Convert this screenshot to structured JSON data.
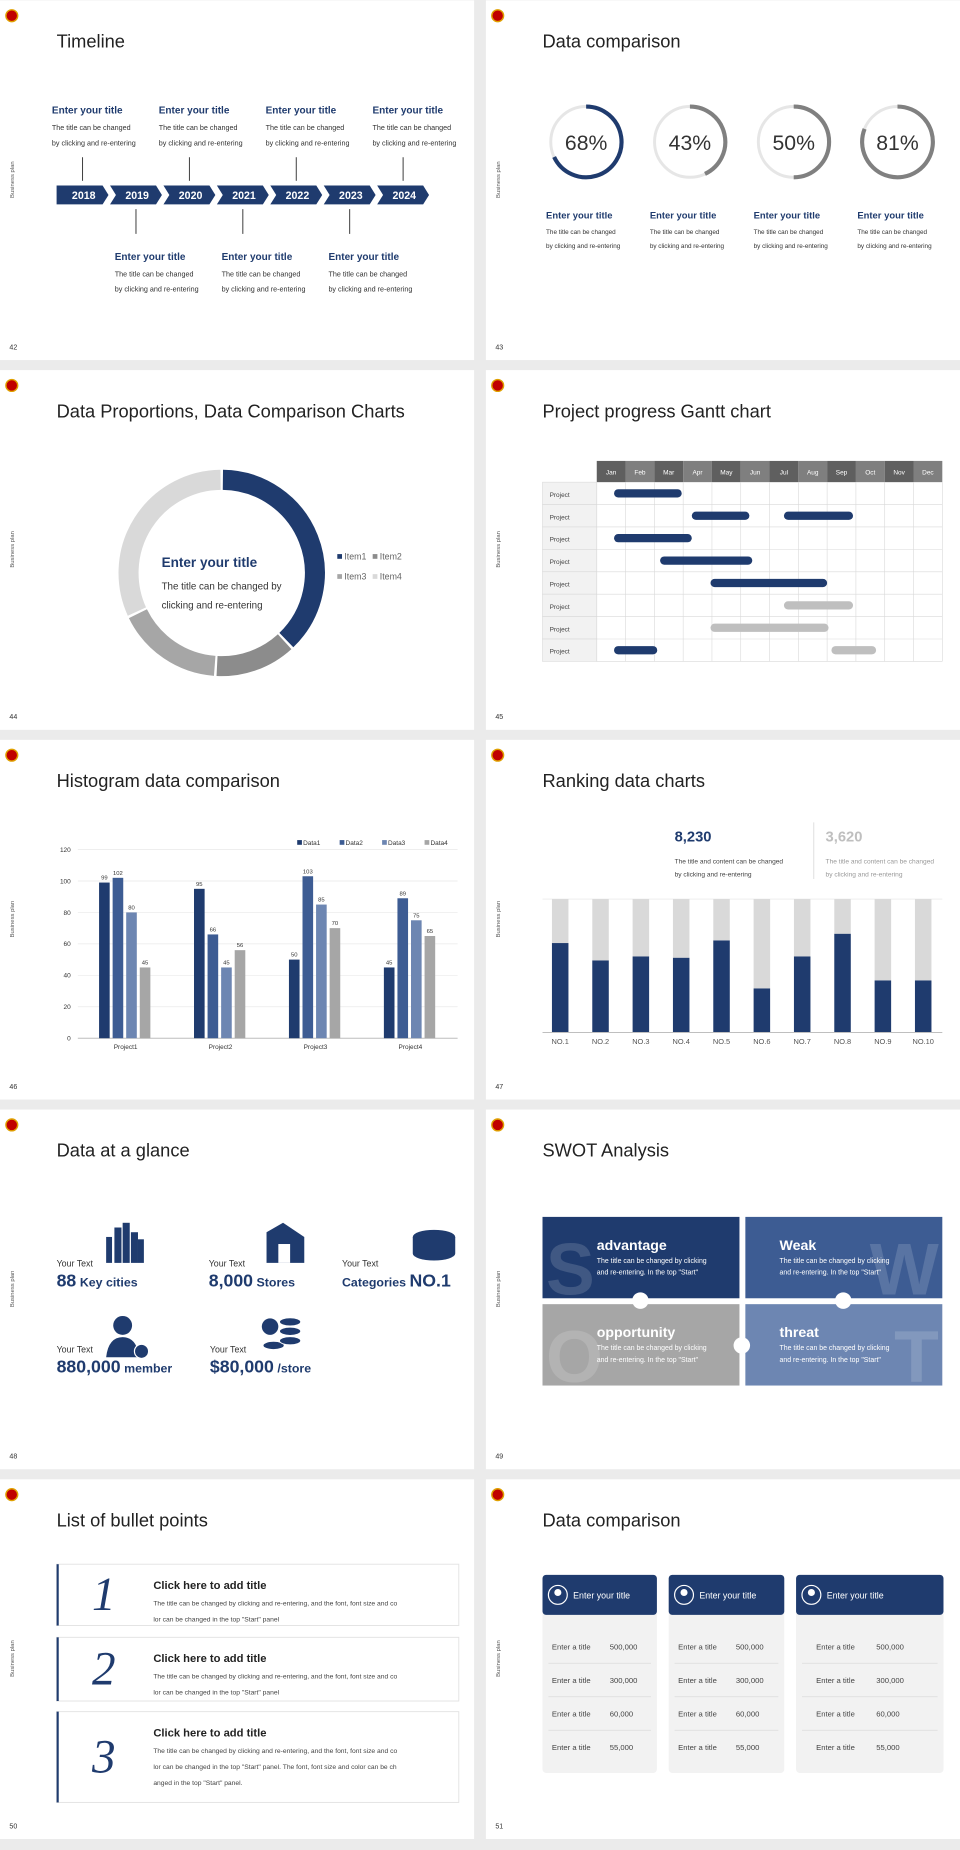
{
  "slides": [
    {
      "page": "42",
      "side": "Business plan",
      "title": "Timeline",
      "years": [
        "2018",
        "2019",
        "2020",
        "2021",
        "2022",
        "2023",
        "2024"
      ],
      "top": [
        {
          "title": "Enter your title",
          "lines": [
            "The title can be changed",
            "by clicking and re-entering"
          ]
        },
        {
          "title": "Enter your title",
          "lines": [
            "The title can be changed",
            "by clicking and re-entering"
          ]
        },
        {
          "title": "Enter your title",
          "lines": [
            "The title can be changed",
            "by clicking and re-entering"
          ]
        },
        {
          "title": "Enter your title",
          "lines": [
            "The title can be changed",
            "by clicking and re-entering"
          ]
        }
      ],
      "bottom": [
        {
          "title": "Enter your title",
          "lines": [
            "The title can be changed",
            "by clicking and re-entering"
          ]
        },
        {
          "title": "Enter your title",
          "lines": [
            "The title can be changed",
            "by clicking and re-entering"
          ]
        },
        {
          "title": "Enter your title",
          "lines": [
            "The title can be changed",
            "by clicking and re-entering"
          ]
        }
      ]
    },
    {
      "page": "43",
      "side": "Business plan",
      "title": "Data comparison",
      "chart_data": {
        "type": "ring",
        "values": [
          68,
          43,
          50,
          81
        ],
        "value_labels": [
          "68%",
          "43%",
          "50%",
          "81%"
        ],
        "colors": [
          "#1f3b6e",
          "#808080",
          "#808080",
          "#808080"
        ],
        "ylim": [
          0,
          100
        ]
      },
      "captions": [
        {
          "title": "Enter your title",
          "lines": [
            "The title can be changed",
            "by clicking and re-entering"
          ]
        },
        {
          "title": "Enter your title",
          "lines": [
            "The title can be changed",
            "by clicking and re-entering"
          ]
        },
        {
          "title": "Enter your title",
          "lines": [
            "The title can be changed",
            "by clicking and re-entering"
          ]
        },
        {
          "title": "Enter your title",
          "lines": [
            "The title can be changed",
            "by clicking and re-entering"
          ]
        }
      ]
    },
    {
      "page": "44",
      "side": "Business plan",
      "title": "Data Proportions, Data Comparison Charts",
      "chart_data": {
        "type": "donut",
        "categories": [
          "Item1",
          "Item2",
          "Item3",
          "Item4"
        ],
        "values": [
          38,
          13,
          17,
          32
        ],
        "colors": [
          "#1f3b6e",
          "#8c8c8c",
          "#a6a6a6",
          "#d9d9d9"
        ]
      },
      "center": {
        "title": "Enter your title",
        "lines": [
          "The title can be changed by",
          "clicking and re-entering"
        ]
      }
    },
    {
      "page": "45",
      "side": "Business plan",
      "title": "Project progress Gantt chart",
      "chart_data": {
        "type": "gantt",
        "categories": [
          "Jan",
          "Feb",
          "Mar",
          "Apr",
          "May",
          "Jun",
          "Jul",
          "Aug",
          "Sep",
          "Oct",
          "Nov",
          "Dec"
        ],
        "xlim": [
          0,
          12
        ],
        "rows": [
          {
            "label": "Project",
            "bars": [
              {
                "start": 0.6,
                "end": 2.95,
                "color": "#1f3b6e"
              }
            ]
          },
          {
            "label": "Project",
            "bars": [
              {
                "start": 3.3,
                "end": 5.3,
                "color": "#1f3b6e"
              },
              {
                "start": 6.5,
                "end": 8.9,
                "color": "#1f3b6e"
              }
            ]
          },
          {
            "label": "Project",
            "bars": [
              {
                "start": 0.6,
                "end": 3.3,
                "color": "#1f3b6e"
              }
            ]
          },
          {
            "label": "Project",
            "bars": [
              {
                "start": 2.2,
                "end": 5.4,
                "color": "#1f3b6e"
              }
            ]
          },
          {
            "label": "Project",
            "bars": [
              {
                "start": 3.95,
                "end": 8.0,
                "color": "#1f3b6e"
              }
            ]
          },
          {
            "label": "Project",
            "bars": [
              {
                "start": 6.5,
                "end": 8.9,
                "color": "#bfbfbf"
              }
            ]
          },
          {
            "label": "Project",
            "bars": [
              {
                "start": 3.95,
                "end": 8.05,
                "color": "#bfbfbf"
              }
            ]
          },
          {
            "label": "Project",
            "bars": [
              {
                "start": 0.6,
                "end": 2.1,
                "color": "#1f3b6e"
              },
              {
                "start": 8.15,
                "end": 9.7,
                "color": "#bfbfbf"
              }
            ]
          }
        ]
      }
    },
    {
      "page": "46",
      "side": "Business plan",
      "title": "Histogram data comparison",
      "chart_data": {
        "type": "bar",
        "categories": [
          "Project1",
          "Project2",
          "Project3",
          "Project4"
        ],
        "series": [
          {
            "name": "Data1",
            "color": "#1f3b6e",
            "values": [
              99,
              95,
              50,
              45
            ]
          },
          {
            "name": "Data2",
            "color": "#3d5c93",
            "values": [
              102,
              66,
              103,
              89
            ]
          },
          {
            "name": "Data3",
            "color": "#6d86b2",
            "values": [
              80,
              45,
              85,
              75
            ]
          },
          {
            "name": "Data4",
            "color": "#a6a6a6",
            "values": [
              45,
              56,
              70,
              65
            ]
          }
        ],
        "ylim": [
          0,
          120
        ],
        "yticks": [
          0,
          20,
          40,
          60,
          80,
          100,
          120
        ],
        "grid": true
      }
    },
    {
      "page": "47",
      "side": "Business plan",
      "title": "Ranking data charts",
      "stats": [
        {
          "value": "8,230",
          "lines": [
            "The title and content can be changed",
            "by clicking and re-entering"
          ]
        },
        {
          "value": "3,620",
          "lines": [
            "The title and content can be changed",
            "by clicking and re-entering"
          ]
        }
      ],
      "chart_data": {
        "type": "stacked_bar",
        "categories": [
          "NO.1",
          "NO.2",
          "NO.3",
          "NO.4",
          "NO.5",
          "NO.6",
          "NO.7",
          "NO.8",
          "NO.9",
          "NO.10"
        ],
        "series": [
          {
            "color": "#1f3b6e",
            "values": [
              67,
              54,
              57,
              56,
              69,
              33,
              57,
              74,
              39,
              39
            ]
          },
          {
            "color": "#d9d9d9",
            "values": [
              33,
              46,
              43,
              44,
              31,
              67,
              43,
              26,
              61,
              61
            ]
          }
        ],
        "ylim": [
          0,
          100
        ]
      }
    },
    {
      "page": "48",
      "side": "Business plan",
      "title": "Data at a glance",
      "items": [
        {
          "label": "Your Text",
          "parts": [
            {
              "text": "88",
              "size": "large"
            },
            {
              "text": "Key cities",
              "size": "small"
            }
          ]
        },
        {
          "label": "Your Text",
          "parts": [
            {
              "text": "8,000",
              "size": "large"
            },
            {
              "text": "Stores",
              "size": "small"
            }
          ]
        },
        {
          "label": "Your Text",
          "parts": [
            {
              "text": "Categories",
              "size": "small"
            },
            {
              "text": "NO.1",
              "size": "large"
            }
          ]
        },
        {
          "label": "Your Text",
          "parts": [
            {
              "text": "880,000",
              "size": "large"
            },
            {
              "text": "member",
              "size": "small"
            }
          ]
        },
        {
          "label": "Your Text",
          "parts": [
            {
              "text": "$80,000",
              "size": "large"
            },
            {
              "text": "/store",
              "size": "small"
            }
          ]
        }
      ]
    },
    {
      "page": "49",
      "side": "Business plan",
      "title": "SWOT Analysis",
      "quadrants": [
        {
          "letter": "S",
          "title": "advantage",
          "color": "#1f3b6e",
          "lines": [
            "The title can be changed by clicking",
            "and re-entering. In the top \"Start\""
          ]
        },
        {
          "letter": "W",
          "title": "Weak",
          "color": "#3d5c93",
          "lines": [
            "The title can be changed by clicking",
            "and re-entering. In the top \"Start\""
          ]
        },
        {
          "letter": "O",
          "title": "opportunity",
          "color": "#a6a6a6",
          "lines": [
            "The title can be changed by clicking",
            "and re-entering. In the top \"Start\""
          ]
        },
        {
          "letter": "T",
          "title": "threat",
          "color": "#6d86b2",
          "lines": [
            "The title can be changed by clicking",
            "and re-entering. In the top \"Start\""
          ]
        }
      ]
    },
    {
      "page": "50",
      "side": "Business plan",
      "title": "List of bullet points",
      "items": [
        {
          "number": "1",
          "title": "Click here to add title",
          "lines": [
            "The title can be changed by clicking and re-entering, and the font, font size and co",
            "lor can be changed in the top \"Start\" panel"
          ]
        },
        {
          "number": "2",
          "title": "Click here to add title",
          "lines": [
            "The title can be changed by clicking and re-entering, and the font, font size and co",
            "lor can be changed in the top \"Start\" panel"
          ]
        },
        {
          "number": "3",
          "title": "Click here to add title",
          "lines": [
            "The title can be changed by clicking and re-entering, and the font, font size and co",
            "lor can be changed in the top \"Start\" panel. The font, font size and color can be ch",
            "anged in the top \"Start\" panel."
          ]
        }
      ]
    },
    {
      "page": "51",
      "side": "Business plan",
      "title": "Data comparison",
      "cards": [
        {
          "title": "Enter your title",
          "rows": [
            [
              "Enter a title",
              "500,000"
            ],
            [
              "Enter a title",
              "300,000"
            ],
            [
              "Enter a title",
              "60,000"
            ],
            [
              "Enter a title",
              "55,000"
            ]
          ]
        },
        {
          "title": "Enter your title",
          "rows": [
            [
              "Enter a title",
              "500,000"
            ],
            [
              "Enter a title",
              "300,000"
            ],
            [
              "Enter a title",
              "60,000"
            ],
            [
              "Enter a title",
              "55,000"
            ]
          ]
        },
        {
          "title": "Enter your title",
          "rows": [
            [
              "Enter a title",
              "500,000"
            ],
            [
              "Enter a title",
              "300,000"
            ],
            [
              "Enter a title",
              "60,000"
            ],
            [
              "Enter a title",
              "55,000"
            ]
          ]
        }
      ]
    }
  ]
}
